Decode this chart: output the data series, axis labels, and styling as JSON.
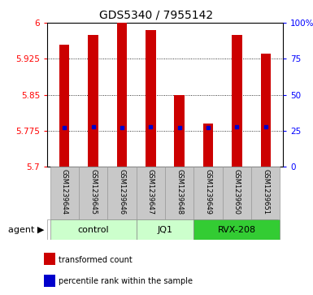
{
  "title": "GDS5340 / 7955142",
  "samples": [
    "GSM1239644",
    "GSM1239645",
    "GSM1239646",
    "GSM1239647",
    "GSM1239648",
    "GSM1239649",
    "GSM1239650",
    "GSM1239651"
  ],
  "transformed_counts": [
    5.955,
    5.975,
    6.0,
    5.985,
    5.85,
    5.79,
    5.975,
    5.935
  ],
  "percentile_ranks": [
    5.782,
    5.783,
    5.782,
    5.783,
    5.782,
    5.781,
    5.783,
    5.783
  ],
  "ylim_left": [
    5.7,
    6.0
  ],
  "ylim_right": [
    0,
    100
  ],
  "yticks_left": [
    5.7,
    5.775,
    5.85,
    5.925,
    6.0
  ],
  "yticks_right": [
    0,
    25,
    50,
    75,
    100
  ],
  "ytick_labels_left": [
    "5.7",
    "5.775",
    "5.85",
    "5.925",
    "6"
  ],
  "ytick_labels_right": [
    "0",
    "25",
    "50",
    "75",
    "100%"
  ],
  "groups": [
    {
      "label": "control",
      "indices": [
        0,
        1,
        2
      ],
      "color": "#ccffcc"
    },
    {
      "label": "JQ1",
      "indices": [
        3,
        4
      ],
      "color": "#ccffcc"
    },
    {
      "label": "RVX-208",
      "indices": [
        5,
        6,
        7
      ],
      "color": "#33cc33"
    }
  ],
  "bar_color": "#cc0000",
  "percentile_color": "#0000cc",
  "bar_width": 0.35,
  "xlabel_bg": "#c8c8c8",
  "agent_label": "agent",
  "legend_items": [
    {
      "color": "#cc0000",
      "label": "transformed count"
    },
    {
      "color": "#0000cc",
      "label": "percentile rank within the sample"
    }
  ],
  "title_fontsize": 10,
  "tick_fontsize": 7.5,
  "sample_fontsize": 6,
  "group_fontsize": 8,
  "legend_fontsize": 7
}
